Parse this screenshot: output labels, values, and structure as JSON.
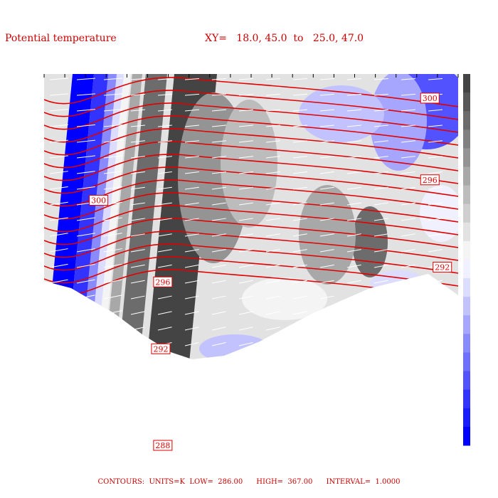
{
  "title_left": "Potential temperature",
  "title_right": "XY=   18.0, 45.0  to   25.0, 47.0",
  "footer": {
    "contours": "CONTOURS:",
    "units": "UNITS=K",
    "low_label": "LOW=",
    "low": "286.00",
    "high_label": "HIGH=",
    "high": "367.00",
    "interval_label": "INTERVAL=",
    "interval": "1.0000"
  },
  "chart_data": {
    "type": "heatmap",
    "title": "Potential temperature",
    "contour_color": "#e00000",
    "vector_color": "#ffffff",
    "colorscale": [
      "#0000ff",
      "#1a1aff",
      "#3333ff",
      "#5252ff",
      "#6e6eff",
      "#8a8aff",
      "#a6a6ff",
      "#c2c2ff",
      "#dcdcff",
      "#f0f0ff",
      "#f4f4f4",
      "#e2e2e2",
      "#cfcfcf",
      "#bcbcbc",
      "#a8a8a8",
      "#949494",
      "#808080",
      "#6c6c6c",
      "#585858",
      "#444444"
    ],
    "contour_labels": [
      {
        "text": "300",
        "x": 0.13,
        "y": 0.66
      },
      {
        "text": "300",
        "x": 0.93,
        "y": 0.935
      },
      {
        "text": "296",
        "x": 0.285,
        "y": 0.44
      },
      {
        "text": "296",
        "x": 0.93,
        "y": 0.715
      },
      {
        "text": "292",
        "x": 0.28,
        "y": 0.26
      },
      {
        "text": "292",
        "x": 0.96,
        "y": 0.48
      },
      {
        "text": "288",
        "x": 0.285,
        "y": 0.0
      }
    ]
  }
}
